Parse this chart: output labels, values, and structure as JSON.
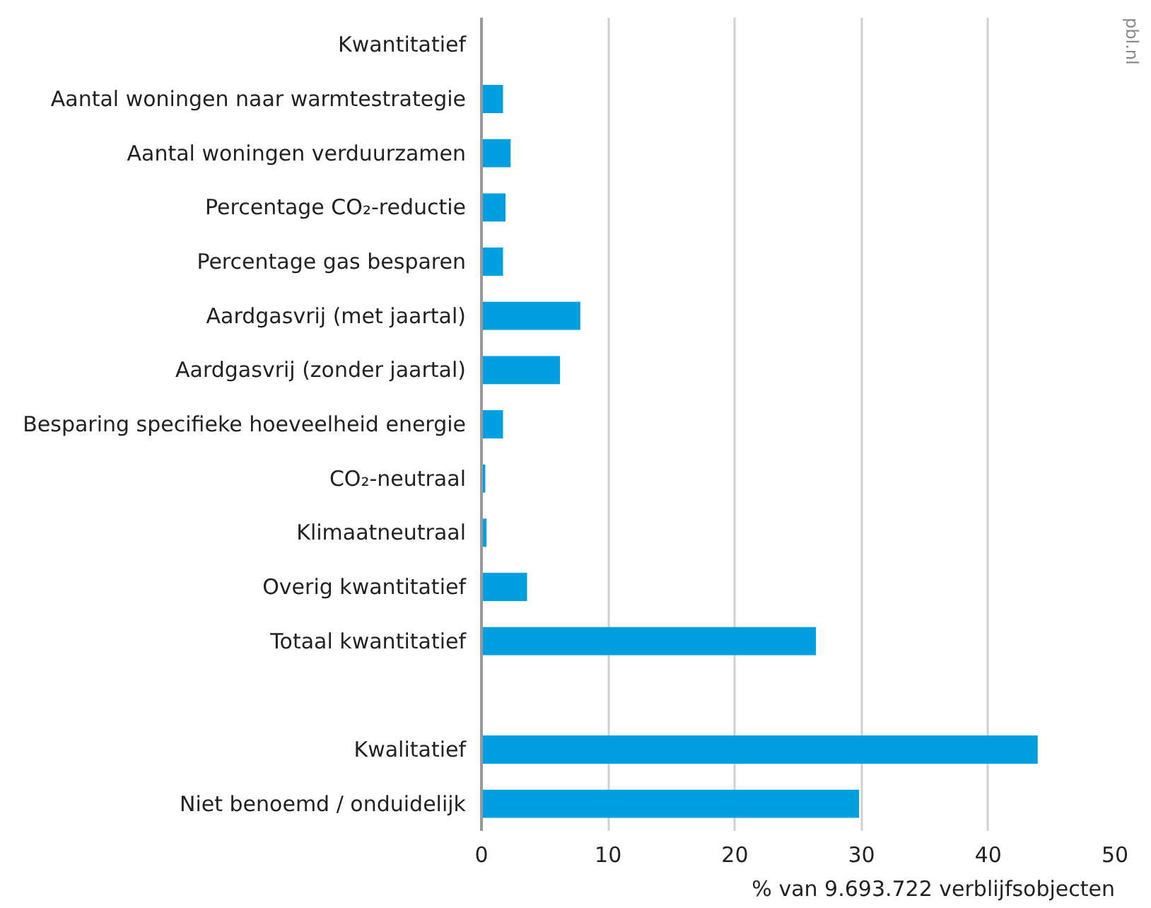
{
  "chart_data": {
    "type": "bar",
    "orientation": "horizontal",
    "categories": [
      "Kwantitatief",
      "Aantal woningen naar warmtestrategie",
      "Aantal woningen verduurzamen",
      "Percentage CO₂-reductie",
      "Percentage gas besparen",
      "Aardgasvrij (met jaartal)",
      "Aardgasvrij (zonder jaartal)",
      "Besparing specifieke hoeveelheid energie",
      "CO₂-neutraal",
      "Klimaatneutraal",
      "Overig kwantitatief",
      "Totaal kwantitatief",
      null,
      "Kwalitatief",
      "Niet benoemd / onduidelijk"
    ],
    "values": [
      null,
      1.7,
      2.3,
      1.9,
      1.7,
      7.8,
      6.2,
      1.7,
      0.3,
      0.4,
      3.6,
      26.4,
      null,
      43.9,
      29.8
    ],
    "color": "#009fdf",
    "xlim": [
      0,
      50
    ],
    "xticks": [
      0,
      10,
      20,
      30,
      40,
      50
    ],
    "xlabel": "% van 9.693.722 verblijfsobjecten",
    "grid": "x",
    "annotations": [
      "pbl.nl"
    ]
  }
}
